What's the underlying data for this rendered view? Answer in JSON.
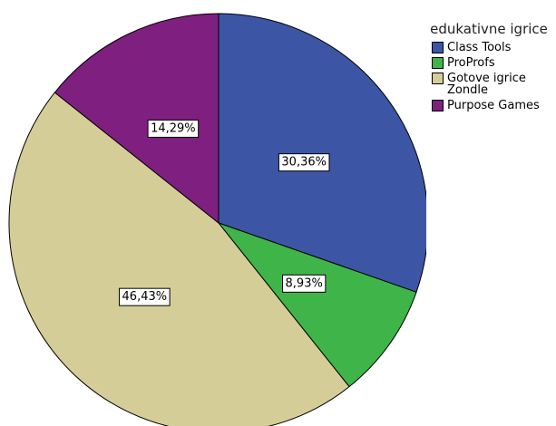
{
  "chart_data": {
    "type": "pie",
    "legend_title": "edukativne igrice",
    "categories": [
      "Class Tools",
      "ProProfs",
      "Gotove igrice Zondle",
      "Purpose Games"
    ],
    "values": [
      30.36,
      8.93,
      46.43,
      14.29
    ],
    "value_labels": [
      "30,36%",
      "8,93%",
      "46,43%",
      "14,29%"
    ],
    "colors": [
      "#3c55a5",
      "#3fb549",
      "#d4cd98",
      "#7f1f80"
    ],
    "legend": "right"
  }
}
